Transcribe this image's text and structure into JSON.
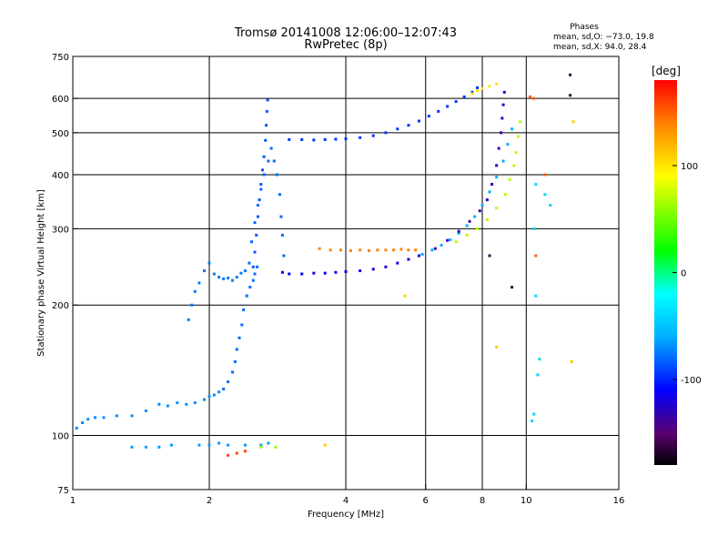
{
  "header": {
    "title_line1": "Tromsø 20141008 12:06:00–12:07:43",
    "title_line2": "RwPretec (8p)"
  },
  "stats": {
    "heading": "Phases",
    "line_o": "mean, sd,O: −73.0, 19.8",
    "line_x": "mean, sd,X:  94.0, 28.4"
  },
  "chart_data": {
    "type": "scatter",
    "title": "Tromsø 20141008 12:06:00–12:07:43",
    "subtitle": "RwPretec (8p)",
    "xlabel": "Frequency [MHz]",
    "ylabel": "Stationary phase Virtual Height [km]",
    "x_scale": "log",
    "y_scale": "log",
    "xlim": [
      1,
      16
    ],
    "ylim": [
      75,
      750
    ],
    "x_ticks": [
      {
        "value": 1,
        "label": "1"
      },
      {
        "value": 2,
        "label": "2"
      },
      {
        "value": 4,
        "label": "4"
      },
      {
        "value": 6,
        "label": "6"
      },
      {
        "value": 8,
        "label": "8"
      },
      {
        "value": 10,
        "label": "10"
      },
      {
        "value": 16,
        "label": "16"
      }
    ],
    "y_ticks": [
      {
        "value": 75,
        "label": "75"
      },
      {
        "value": 100,
        "label": "100"
      },
      {
        "value": 200,
        "label": "200"
      },
      {
        "value": 300,
        "label": "300"
      },
      {
        "value": 400,
        "label": "400"
      },
      {
        "value": 500,
        "label": "500"
      },
      {
        "value": 600,
        "label": "600"
      },
      {
        "value": 750,
        "label": "750"
      }
    ],
    "x_gridlines": [
      2,
      4,
      6,
      8,
      10
    ],
    "y_gridlines": [
      100,
      200,
      300,
      400,
      500,
      600
    ],
    "grid": true,
    "colorbar": {
      "label": "[deg]",
      "range": [
        -180,
        180
      ],
      "ticks": [
        {
          "value": 100,
          "label": "100"
        },
        {
          "value": 0,
          "label": "0"
        },
        {
          "value": -100,
          "label": "-100"
        }
      ],
      "stops": [
        {
          "value": -180,
          "color": "#000000"
        },
        {
          "value": -150,
          "color": "#5a0070"
        },
        {
          "value": -110,
          "color": "#0000ff"
        },
        {
          "value": -60,
          "color": "#00b0ff"
        },
        {
          "value": -20,
          "color": "#00ffff"
        },
        {
          "value": 20,
          "color": "#00ff00"
        },
        {
          "value": 90,
          "color": "#ffff00"
        },
        {
          "value": 140,
          "color": "#ff8000"
        },
        {
          "value": 180,
          "color": "#ff0000"
        }
      ]
    },
    "series": [
      {
        "phase": -70,
        "points": [
          [
            1.02,
            104
          ],
          [
            1.05,
            107
          ],
          [
            1.08,
            109
          ],
          [
            1.12,
            110
          ],
          [
            1.17,
            110
          ],
          [
            1.25,
            111
          ],
          [
            1.35,
            111
          ],
          [
            1.45,
            114
          ],
          [
            1.55,
            118
          ],
          [
            1.62,
            117
          ],
          [
            1.7,
            119
          ],
          [
            1.78,
            118
          ],
          [
            1.86,
            119
          ],
          [
            1.95,
            121
          ],
          [
            2.0,
            123
          ],
          [
            2.05,
            124
          ],
          [
            2.1,
            126
          ]
        ]
      },
      {
        "phase": -80,
        "points": [
          [
            2.15,
            128
          ],
          [
            2.2,
            133
          ],
          [
            2.25,
            140
          ],
          [
            2.28,
            148
          ],
          [
            2.3,
            158
          ],
          [
            2.33,
            168
          ],
          [
            2.36,
            180
          ],
          [
            2.38,
            195
          ],
          [
            2.42,
            210
          ],
          [
            2.46,
            220
          ],
          [
            2.5,
            228
          ],
          [
            2.52,
            236
          ],
          [
            2.55,
            245
          ]
        ]
      },
      {
        "phase": -85,
        "points": [
          [
            2.5,
            245
          ],
          [
            2.52,
            265
          ],
          [
            2.54,
            290
          ],
          [
            2.56,
            320
          ],
          [
            2.58,
            350
          ],
          [
            2.6,
            380
          ],
          [
            2.62,
            410
          ],
          [
            2.64,
            440
          ],
          [
            2.66,
            480
          ],
          [
            2.67,
            520
          ],
          [
            2.68,
            560
          ],
          [
            2.69,
            595
          ]
        ]
      },
      {
        "phase": -80,
        "points": [
          [
            2.45,
            250
          ],
          [
            2.48,
            280
          ],
          [
            2.52,
            310
          ],
          [
            2.56,
            340
          ],
          [
            2.6,
            370
          ],
          [
            2.64,
            400
          ],
          [
            2.7,
            430
          ],
          [
            2.74,
            460
          ],
          [
            2.78,
            430
          ],
          [
            2.82,
            400
          ],
          [
            2.86,
            360
          ],
          [
            2.88,
            320
          ],
          [
            2.9,
            290
          ],
          [
            2.92,
            260
          ]
        ]
      },
      {
        "phase": -75,
        "points": [
          [
            1.8,
            185
          ],
          [
            1.83,
            200
          ],
          [
            1.86,
            215
          ],
          [
            1.9,
            225
          ],
          [
            1.95,
            240
          ],
          [
            2.0,
            250
          ],
          [
            2.05,
            236
          ],
          [
            2.1,
            232
          ],
          [
            2.15,
            230
          ],
          [
            2.2,
            231
          ],
          [
            2.25,
            228
          ],
          [
            2.3,
            232
          ],
          [
            2.35,
            237
          ],
          [
            2.4,
            240
          ]
        ]
      },
      {
        "phase": -115,
        "points": [
          [
            2.9,
            238
          ],
          [
            3.0,
            236
          ],
          [
            3.2,
            236
          ],
          [
            3.4,
            237
          ],
          [
            3.6,
            237
          ],
          [
            3.8,
            238
          ],
          [
            4.0,
            239
          ],
          [
            4.3,
            240
          ],
          [
            4.6,
            242
          ],
          [
            4.9,
            245
          ],
          [
            5.2,
            250
          ],
          [
            5.5,
            255
          ],
          [
            5.8,
            260
          ]
        ]
      },
      {
        "phase": -60,
        "points": [
          [
            5.9,
            262
          ],
          [
            6.2,
            268
          ],
          [
            6.5,
            275
          ],
          [
            6.8,
            283
          ],
          [
            7.1,
            293
          ],
          [
            7.4,
            305
          ],
          [
            7.7,
            320
          ],
          [
            8.0,
            340
          ],
          [
            8.3,
            365
          ],
          [
            8.6,
            395
          ],
          [
            8.9,
            430
          ],
          [
            9.1,
            470
          ],
          [
            9.3,
            510
          ]
        ]
      },
      {
        "phase": 70,
        "points": [
          [
            7.0,
            280
          ],
          [
            7.4,
            290
          ],
          [
            7.8,
            300
          ],
          [
            8.2,
            315
          ],
          [
            8.6,
            335
          ],
          [
            9.0,
            360
          ],
          [
            9.2,
            390
          ],
          [
            9.4,
            420
          ],
          [
            9.5,
            450
          ],
          [
            9.6,
            490
          ],
          [
            9.7,
            530
          ]
        ]
      },
      {
        "phase": -130,
        "points": [
          [
            6.3,
            270
          ],
          [
            6.7,
            282
          ],
          [
            7.1,
            296
          ],
          [
            7.5,
            312
          ],
          [
            7.9,
            330
          ],
          [
            8.2,
            350
          ],
          [
            8.4,
            380
          ],
          [
            8.6,
            420
          ],
          [
            8.7,
            460
          ],
          [
            8.8,
            500
          ],
          [
            8.85,
            540
          ],
          [
            8.9,
            580
          ],
          [
            8.95,
            620
          ]
        ]
      },
      {
        "phase": 140,
        "points": [
          [
            3.5,
            270
          ],
          [
            3.7,
            268
          ],
          [
            3.9,
            268
          ],
          [
            4.1,
            267
          ],
          [
            4.3,
            268
          ],
          [
            4.5,
            267
          ],
          [
            4.7,
            268
          ],
          [
            4.9,
            268
          ],
          [
            5.1,
            268
          ],
          [
            5.3,
            269
          ],
          [
            5.5,
            268
          ],
          [
            5.7,
            268
          ]
        ]
      },
      {
        "phase": -95,
        "points": [
          [
            3.0,
            482
          ],
          [
            3.2,
            482
          ],
          [
            3.4,
            481
          ],
          [
            3.6,
            482
          ],
          [
            3.8,
            483
          ],
          [
            4.0,
            484
          ],
          [
            4.3,
            487
          ],
          [
            4.6,
            492
          ],
          [
            4.9,
            500
          ],
          [
            5.2,
            510
          ],
          [
            5.5,
            520
          ],
          [
            5.8,
            532
          ],
          [
            6.1,
            546
          ],
          [
            6.4,
            560
          ],
          [
            6.7,
            575
          ],
          [
            7.0,
            590
          ],
          [
            7.3,
            605
          ],
          [
            7.6,
            620
          ],
          [
            7.8,
            635
          ]
        ]
      },
      {
        "phase": 100,
        "points": [
          [
            7.6,
            615
          ],
          [
            7.8,
            625
          ],
          [
            8.0,
            632
          ],
          [
            8.3,
            640
          ],
          [
            8.6,
            648
          ]
        ]
      },
      {
        "phase": -65,
        "points": [
          [
            1.35,
            94
          ],
          [
            1.45,
            94
          ],
          [
            1.55,
            94
          ],
          [
            1.65,
            95
          ],
          [
            1.9,
            95
          ],
          [
            2.0,
            95
          ],
          [
            2.1,
            96
          ],
          [
            2.2,
            95
          ],
          [
            2.4,
            95
          ],
          [
            2.6,
            95
          ],
          [
            2.7,
            96
          ]
        ]
      },
      {
        "phase": 160,
        "points": [
          [
            2.2,
            90
          ],
          [
            2.3,
            91
          ],
          [
            2.4,
            92
          ]
        ]
      },
      {
        "phase": 60,
        "points": [
          [
            2.6,
            94
          ],
          [
            2.8,
            94
          ]
        ]
      },
      {
        "phase": -40,
        "points": [
          [
            10.3,
            108
          ],
          [
            10.4,
            112
          ],
          [
            10.6,
            138
          ],
          [
            10.7,
            150
          ],
          [
            10.5,
            210
          ],
          [
            10.4,
            300
          ],
          [
            10.5,
            380
          ],
          [
            11.0,
            360
          ],
          [
            11.3,
            340
          ]
        ]
      },
      {
        "phase": 150,
        "points": [
          [
            10.2,
            605
          ],
          [
            10.4,
            600
          ],
          [
            10.5,
            260
          ],
          [
            11.0,
            400
          ]
        ]
      },
      {
        "phase": -160,
        "points": [
          [
            12.5,
            680
          ],
          [
            12.5,
            610
          ],
          [
            9.3,
            220
          ],
          [
            8.3,
            260
          ]
        ]
      },
      {
        "phase": 110,
        "points": [
          [
            12.7,
            530
          ],
          [
            12.6,
            148
          ],
          [
            8.6,
            160
          ],
          [
            5.4,
            210
          ],
          [
            3.6,
            95
          ]
        ]
      }
    ]
  }
}
